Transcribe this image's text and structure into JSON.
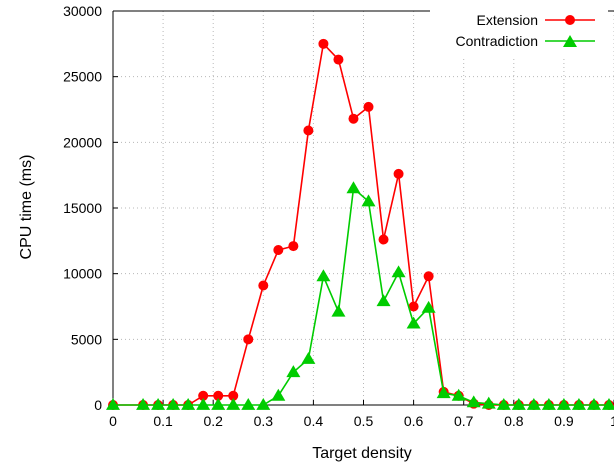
{
  "chart_data": {
    "type": "line",
    "title": "",
    "xlabel": "Target density",
    "ylabel": "CPU time (ms)",
    "xlim": [
      0,
      1
    ],
    "ylim": [
      0,
      30000
    ],
    "x_ticks": [
      0,
      0.1,
      0.2,
      0.3,
      0.4,
      0.5,
      0.6,
      0.7,
      0.8,
      0.9,
      1
    ],
    "x_tick_labels": [
      "0",
      "0.1",
      "0.2",
      "0.3",
      "0.4",
      "0.5",
      "0.6",
      "0.7",
      "0.8",
      "0.9",
      "1"
    ],
    "y_ticks": [
      0,
      5000,
      10000,
      15000,
      20000,
      25000,
      30000
    ],
    "y_tick_labels": [
      "0",
      "5000",
      "10000",
      "15000",
      "20000",
      "25000",
      "30000"
    ],
    "grid": true,
    "legend_position": "top-right",
    "series": [
      {
        "name": "Extension",
        "color": "#ff0000",
        "marker": "circle",
        "points": [
          [
            0,
            0
          ],
          [
            0.06,
            0
          ],
          [
            0.09,
            0
          ],
          [
            0.12,
            0
          ],
          [
            0.15,
            0
          ],
          [
            0.18,
            700
          ],
          [
            0.21,
            700
          ],
          [
            0.24,
            700
          ],
          [
            0.27,
            5000
          ],
          [
            0.3,
            9100
          ],
          [
            0.33,
            11800
          ],
          [
            0.36,
            12100
          ],
          [
            0.39,
            20900
          ],
          [
            0.42,
            27500
          ],
          [
            0.45,
            26300
          ],
          [
            0.48,
            21800
          ],
          [
            0.51,
            22700
          ],
          [
            0.54,
            12600
          ],
          [
            0.57,
            17600
          ],
          [
            0.6,
            7500
          ],
          [
            0.63,
            9800
          ],
          [
            0.66,
            1000
          ],
          [
            0.69,
            700
          ],
          [
            0.72,
            100
          ],
          [
            0.75,
            0
          ],
          [
            0.78,
            0
          ],
          [
            0.81,
            0
          ],
          [
            0.84,
            0
          ],
          [
            0.87,
            0
          ],
          [
            0.9,
            0
          ],
          [
            0.93,
            0
          ],
          [
            0.96,
            0
          ],
          [
            0.99,
            0
          ]
        ]
      },
      {
        "name": "Contradiction",
        "color": "#00cc00",
        "marker": "triangle",
        "points": [
          [
            0,
            0
          ],
          [
            0.06,
            0
          ],
          [
            0.09,
            0
          ],
          [
            0.12,
            0
          ],
          [
            0.15,
            0
          ],
          [
            0.18,
            0
          ],
          [
            0.21,
            0
          ],
          [
            0.24,
            0
          ],
          [
            0.27,
            0
          ],
          [
            0.3,
            0
          ],
          [
            0.33,
            700
          ],
          [
            0.36,
            2500
          ],
          [
            0.39,
            3500
          ],
          [
            0.42,
            9800
          ],
          [
            0.45,
            7100
          ],
          [
            0.48,
            16500
          ],
          [
            0.51,
            15500
          ],
          [
            0.54,
            7900
          ],
          [
            0.57,
            10100
          ],
          [
            0.6,
            6200
          ],
          [
            0.63,
            7400
          ],
          [
            0.66,
            900
          ],
          [
            0.69,
            700
          ],
          [
            0.72,
            200
          ],
          [
            0.75,
            100
          ],
          [
            0.78,
            0
          ],
          [
            0.81,
            0
          ],
          [
            0.84,
            0
          ],
          [
            0.87,
            0
          ],
          [
            0.9,
            0
          ],
          [
            0.93,
            0
          ],
          [
            0.96,
            0
          ],
          [
            0.99,
            0
          ]
        ]
      }
    ]
  }
}
